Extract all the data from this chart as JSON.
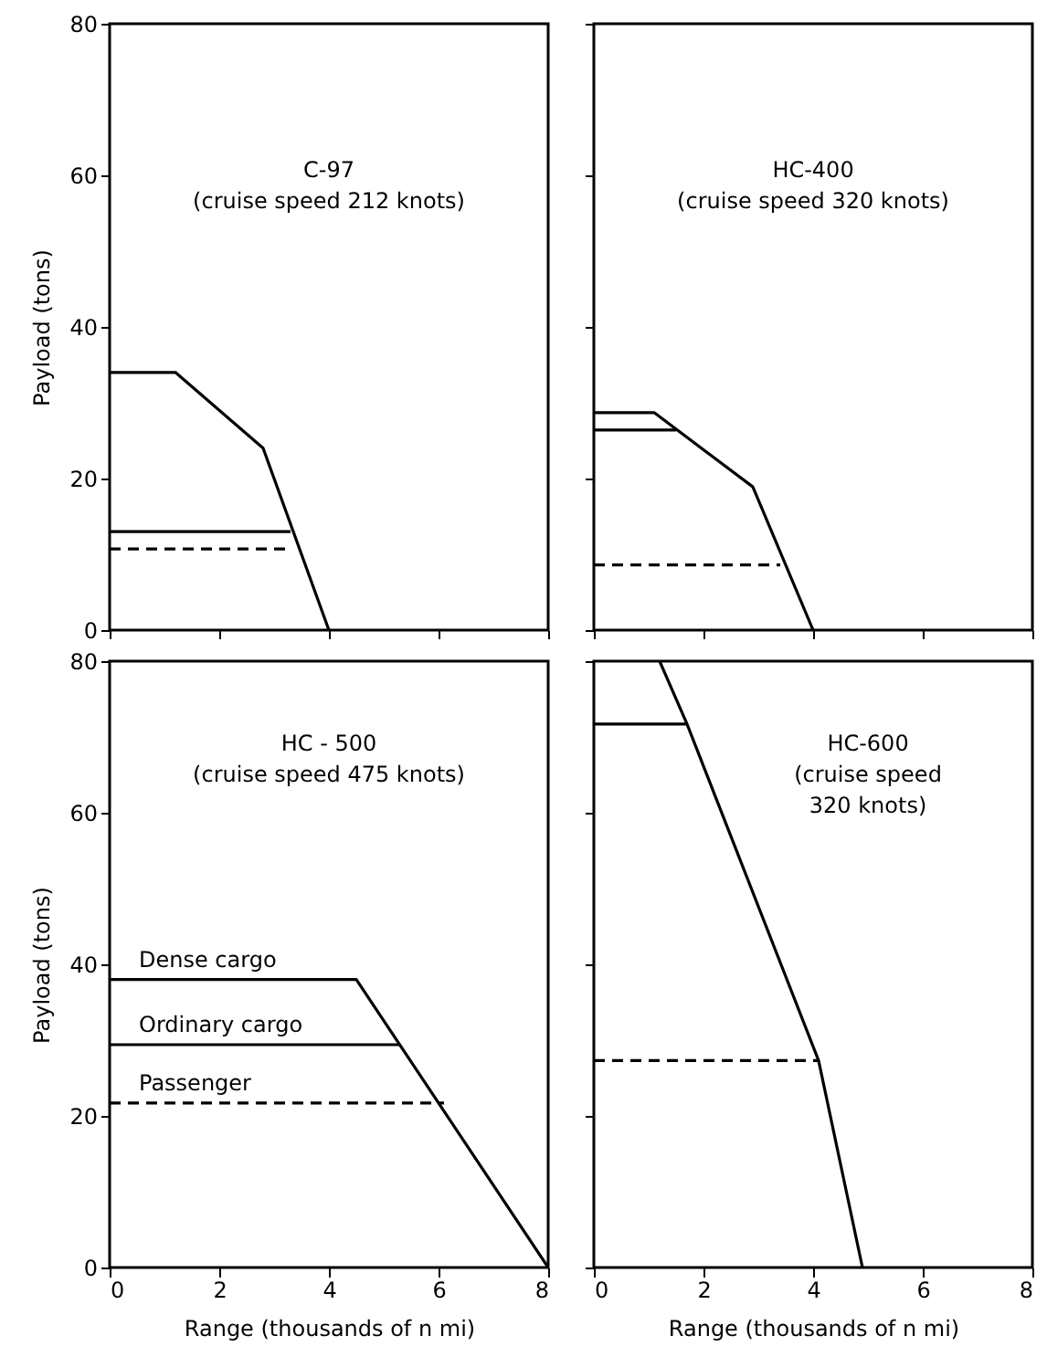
{
  "chart_data": [
    {
      "type": "line",
      "title": "C-97",
      "subtitle": "(cruise speed 212 knots)",
      "ylabel": "Payload (tons)",
      "xlim": [
        0,
        8
      ],
      "ylim": [
        0,
        80
      ],
      "xticks": [
        0,
        2,
        4,
        6,
        8
      ],
      "yticks": [
        0,
        20,
        40,
        60,
        80
      ],
      "tick_labels": "y",
      "series": [
        {
          "color": "#000000",
          "line_style": "solid",
          "x": [
            0,
            1.2,
            2.8,
            4.0
          ],
          "values": [
            34,
            34,
            24,
            0
          ]
        },
        {
          "color": "#000000",
          "line_style": "solid",
          "x": [
            0,
            3.3
          ],
          "values": [
            13,
            13
          ]
        },
        {
          "color": "#000000",
          "line_style": "dashed",
          "x": [
            0,
            3.3
          ],
          "values": [
            10.7,
            10.7
          ]
        }
      ]
    },
    {
      "type": "line",
      "title": "HC-400",
      "subtitle": "(cruise speed 320 knots)",
      "xlim": [
        0,
        8
      ],
      "ylim": [
        0,
        80
      ],
      "xticks": [
        0,
        2,
        4,
        6,
        8
      ],
      "yticks": [
        0,
        20,
        40,
        60,
        80
      ],
      "tick_labels": false,
      "series": [
        {
          "color": "#000000",
          "line_style": "solid",
          "x": [
            0,
            1.1,
            2.9,
            4.0
          ],
          "values": [
            28.7,
            28.7,
            18.9,
            0
          ]
        },
        {
          "color": "#000000",
          "line_style": "solid",
          "x": [
            0,
            1.5
          ],
          "values": [
            26.4,
            26.4
          ]
        },
        {
          "color": "#000000",
          "line_style": "dashed",
          "x": [
            0,
            3.4
          ],
          "values": [
            8.6,
            8.6
          ]
        }
      ]
    },
    {
      "type": "line",
      "title": "HC - 500",
      "subtitle": "(cruise speed 475 knots)",
      "xlabel": "Range (thousands of n mi)",
      "ylabel": "Payload (tons)",
      "xlim": [
        0,
        8
      ],
      "ylim": [
        0,
        80
      ],
      "xticks": [
        0,
        2,
        4,
        6,
        8
      ],
      "yticks": [
        0,
        20,
        40,
        60,
        80
      ],
      "series": [
        {
          "name": "Dense cargo",
          "color": "#000000",
          "line_style": "solid",
          "x": [
            0,
            4.5,
            8.0
          ],
          "values": [
            38,
            38,
            0
          ]
        },
        {
          "name": "Ordinary cargo",
          "color": "#000000",
          "line_style": "solid",
          "x": [
            0,
            5.3
          ],
          "values": [
            29.4,
            29.4
          ]
        },
        {
          "name": "Passenger",
          "color": "#000000",
          "line_style": "dashed",
          "x": [
            0,
            6.1
          ],
          "values": [
            21.7,
            21.7
          ]
        }
      ]
    },
    {
      "type": "line",
      "title": "HC-600",
      "subtitle": "(cruise speed\n320 knots)",
      "xlabel": "Range (thousands of n mi)",
      "xlim": [
        0,
        8
      ],
      "ylim": [
        0,
        80
      ],
      "xticks": [
        0,
        2,
        4,
        6,
        8
      ],
      "yticks": [
        0,
        20,
        40,
        60,
        80
      ],
      "tick_labels": "x",
      "series": [
        {
          "color": "#000000",
          "line_style": "solid",
          "x": [
            1.2,
            1.7,
            4.1,
            4.9
          ],
          "values": [
            80,
            71.7,
            27.3,
            0
          ]
        },
        {
          "color": "#000000",
          "line_style": "solid",
          "x": [
            0,
            1.7
          ],
          "values": [
            71.7,
            71.7
          ]
        },
        {
          "color": "#000000",
          "line_style": "dashed",
          "x": [
            0,
            4.1
          ],
          "values": [
            27.3,
            27.3
          ]
        }
      ]
    }
  ]
}
